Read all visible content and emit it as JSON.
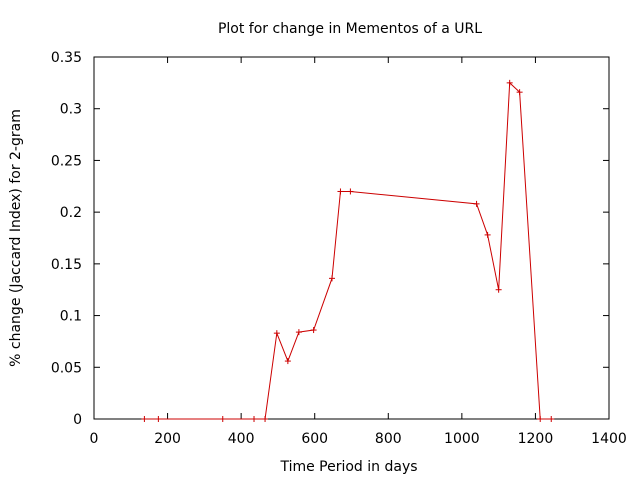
{
  "chart_data": {
    "type": "line",
    "title": "Plot for change in Mementos of a URL",
    "xlabel": "Time Period in days",
    "ylabel": "% change (Jaccard Index) for 2-gram",
    "xlim": [
      0,
      1400
    ],
    "ylim": [
      0,
      0.35
    ],
    "x_ticks": [
      0,
      200,
      400,
      600,
      800,
      1000,
      1200,
      1400
    ],
    "x_tick_labels": [
      "0",
      "200",
      "400",
      "600",
      "800",
      "1000",
      "1200",
      "1400"
    ],
    "y_ticks": [
      0,
      0.05,
      0.1,
      0.15,
      0.2,
      0.25,
      0.3,
      0.35
    ],
    "y_tick_labels": [
      "0",
      "0.05",
      "0.1",
      "0.15",
      "0.2",
      "0.25",
      "0.3",
      "0.35"
    ],
    "grid": false,
    "legend": "none",
    "marker": "plus",
    "color": "#cc0000",
    "x": [
      137,
      175,
      350,
      435,
      465,
      497,
      527,
      557,
      597,
      647,
      670,
      697,
      1040,
      1070,
      1100,
      1130,
      1157,
      1213,
      1243
    ],
    "y": [
      0,
      0,
      0,
      0,
      0,
      0.083,
      0.056,
      0.084,
      0.086,
      0.136,
      0.22,
      0.22,
      0.208,
      0.178,
      0.125,
      0.325,
      0.316,
      0,
      0
    ]
  }
}
